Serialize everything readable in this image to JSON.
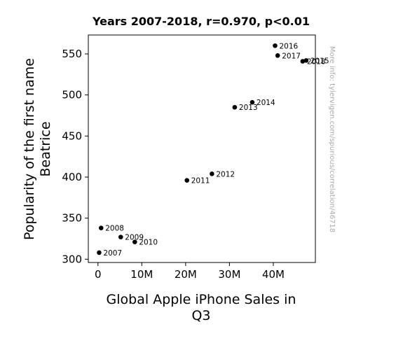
{
  "chart_data": {
    "type": "scatter",
    "title": "Years 2007-2018, r=0.970, p<0.01",
    "xlabel": [
      "Global Apple iPhone Sales in",
      "Q3"
    ],
    "ylabel": [
      "Popularity of the first name",
      "Beatrice"
    ],
    "side_note": "More info: tylervigen.com/spurious/correlation/46718",
    "xlim": [
      -2.2,
      49.6
    ],
    "ylim": [
      296,
      573
    ],
    "xticks": [
      {
        "value": 0,
        "label": "0"
      },
      {
        "value": 10,
        "label": "10M"
      },
      {
        "value": 20,
        "label": "20M"
      },
      {
        "value": 30,
        "label": "30M"
      },
      {
        "value": 40,
        "label": "40M"
      }
    ],
    "yticks": [
      {
        "value": 300,
        "label": "300"
      },
      {
        "value": 350,
        "label": "350"
      },
      {
        "value": 400,
        "label": "400"
      },
      {
        "value": 450,
        "label": "450"
      },
      {
        "value": 500,
        "label": "500"
      },
      {
        "value": 550,
        "label": "550"
      }
    ],
    "grid": false,
    "points": [
      {
        "label": "2007",
        "x": 0.27,
        "y": 308
      },
      {
        "label": "2008",
        "x": 0.72,
        "y": 338
      },
      {
        "label": "2009",
        "x": 5.2,
        "y": 327
      },
      {
        "label": "2010",
        "x": 8.4,
        "y": 321
      },
      {
        "label": "2011",
        "x": 20.3,
        "y": 396
      },
      {
        "label": "2012",
        "x": 26.0,
        "y": 404
      },
      {
        "label": "2013",
        "x": 31.2,
        "y": 485
      },
      {
        "label": "2014",
        "x": 35.2,
        "y": 491
      },
      {
        "label": "2015",
        "x": 47.5,
        "y": 542
      },
      {
        "label": "2016",
        "x": 40.4,
        "y": 560
      },
      {
        "label": "2017",
        "x": 41.0,
        "y": 548
      },
      {
        "label": "2018",
        "x": 46.7,
        "y": 541
      }
    ],
    "marker_color": "#000000"
  }
}
